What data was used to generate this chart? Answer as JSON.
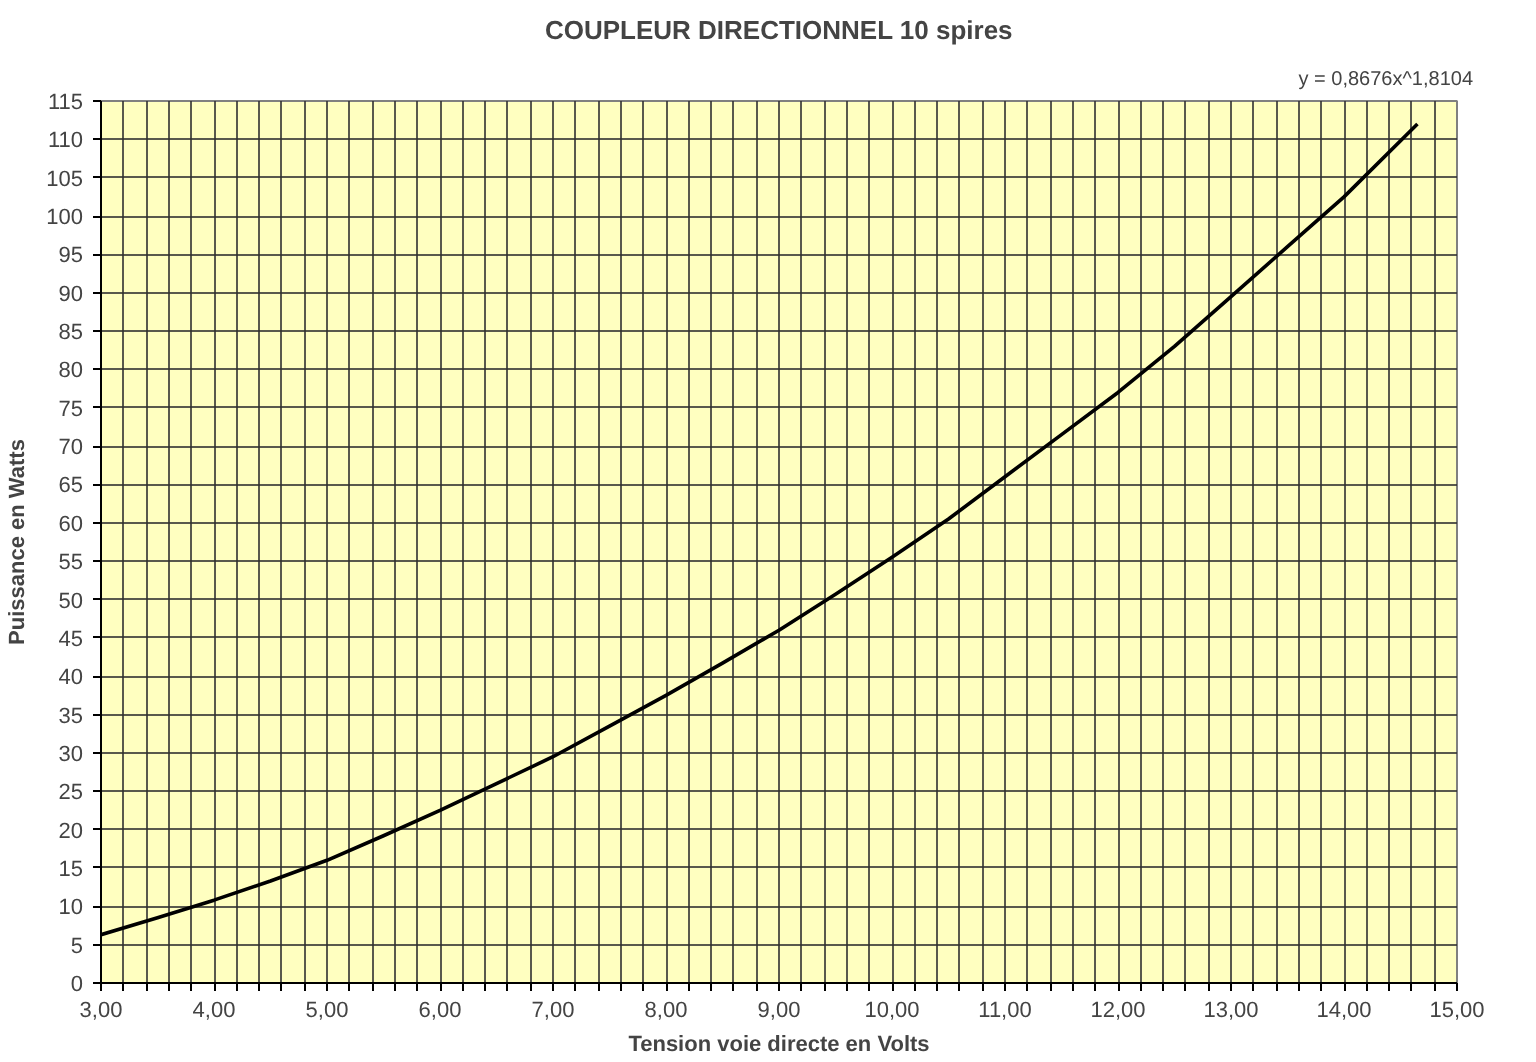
{
  "chart_data": {
    "type": "line",
    "title": "COUPLEUR DIRECTIONNEL 10 spires",
    "xlabel": "Tension voie directe en Volts",
    "ylabel": "Puissance en Watts",
    "annotations": [
      "y = 0,8676x^1,8104"
    ],
    "x": [
      3.0,
      3.5,
      4.0,
      4.5,
      5.0,
      5.5,
      6.0,
      6.5,
      7.0,
      7.5,
      8.0,
      8.5,
      9.0,
      9.5,
      10.0,
      10.5,
      11.0,
      11.5,
      12.0,
      12.5,
      13.0,
      13.5,
      14.0,
      14.65
    ],
    "series": [
      {
        "color": "#000000",
        "values": [
          6.3,
          8.5,
          10.8,
          13.3,
          16.0,
          19.2,
          22.5,
          26.0,
          29.5,
          33.5,
          37.5,
          41.7,
          46.0,
          50.7,
          55.5,
          60.5,
          66.0,
          71.5,
          77.0,
          83.0,
          89.5,
          96.0,
          102.5,
          112.0
        ]
      }
    ],
    "xlim": [
      3,
      15
    ],
    "ylim": [
      0,
      115
    ],
    "xticks": [
      {
        "value": 3,
        "label": "3,00"
      },
      {
        "value": 3.2,
        "label": null
      },
      {
        "value": 3.4,
        "label": null
      },
      {
        "value": 3.6,
        "label": null
      },
      {
        "value": 3.8,
        "label": null
      },
      {
        "value": 4,
        "label": "4,00"
      },
      {
        "value": 4.2,
        "label": null
      },
      {
        "value": 4.4,
        "label": null
      },
      {
        "value": 4.6,
        "label": null
      },
      {
        "value": 4.8,
        "label": null
      },
      {
        "value": 5,
        "label": "5,00"
      },
      {
        "value": 5.2,
        "label": null
      },
      {
        "value": 5.4,
        "label": null
      },
      {
        "value": 5.6,
        "label": null
      },
      {
        "value": 5.8,
        "label": null
      },
      {
        "value": 6,
        "label": "6,00"
      },
      {
        "value": 6.2,
        "label": null
      },
      {
        "value": 6.4,
        "label": null
      },
      {
        "value": 6.6,
        "label": null
      },
      {
        "value": 6.8,
        "label": null
      },
      {
        "value": 7,
        "label": "7,00"
      },
      {
        "value": 7.2,
        "label": null
      },
      {
        "value": 7.4,
        "label": null
      },
      {
        "value": 7.6,
        "label": null
      },
      {
        "value": 7.8,
        "label": null
      },
      {
        "value": 8,
        "label": "8,00"
      },
      {
        "value": 8.2,
        "label": null
      },
      {
        "value": 8.4,
        "label": null
      },
      {
        "value": 8.6,
        "label": null
      },
      {
        "value": 8.8,
        "label": null
      },
      {
        "value": 9,
        "label": "9,00"
      },
      {
        "value": 9.2,
        "label": null
      },
      {
        "value": 9.4,
        "label": null
      },
      {
        "value": 9.6,
        "label": null
      },
      {
        "value": 9.8,
        "label": null
      },
      {
        "value": 10,
        "label": "10,00"
      },
      {
        "value": 10.2,
        "label": null
      },
      {
        "value": 10.4,
        "label": null
      },
      {
        "value": 10.6,
        "label": null
      },
      {
        "value": 10.8,
        "label": null
      },
      {
        "value": 11,
        "label": "11,00"
      },
      {
        "value": 11.2,
        "label": null
      },
      {
        "value": 11.4,
        "label": null
      },
      {
        "value": 11.6,
        "label": null
      },
      {
        "value": 11.8,
        "label": null
      },
      {
        "value": 12,
        "label": "12,00"
      },
      {
        "value": 12.2,
        "label": null
      },
      {
        "value": 12.4,
        "label": null
      },
      {
        "value": 12.6,
        "label": null
      },
      {
        "value": 12.8,
        "label": null
      },
      {
        "value": 13,
        "label": "13,00"
      },
      {
        "value": 13.2,
        "label": null
      },
      {
        "value": 13.4,
        "label": null
      },
      {
        "value": 13.6,
        "label": null
      },
      {
        "value": 13.8,
        "label": null
      },
      {
        "value": 14,
        "label": "14,00"
      },
      {
        "value": 14.2,
        "label": null
      },
      {
        "value": 14.4,
        "label": null
      },
      {
        "value": 14.6,
        "label": null
      },
      {
        "value": 14.8,
        "label": null
      },
      {
        "value": 15,
        "label": "15,00"
      }
    ],
    "yticks": [
      0,
      5,
      10,
      15,
      20,
      25,
      30,
      35,
      40,
      45,
      50,
      55,
      60,
      65,
      70,
      75,
      80,
      85,
      90,
      95,
      100,
      105,
      110,
      115
    ],
    "grid": true,
    "marker": "none",
    "line_style": "solid"
  }
}
